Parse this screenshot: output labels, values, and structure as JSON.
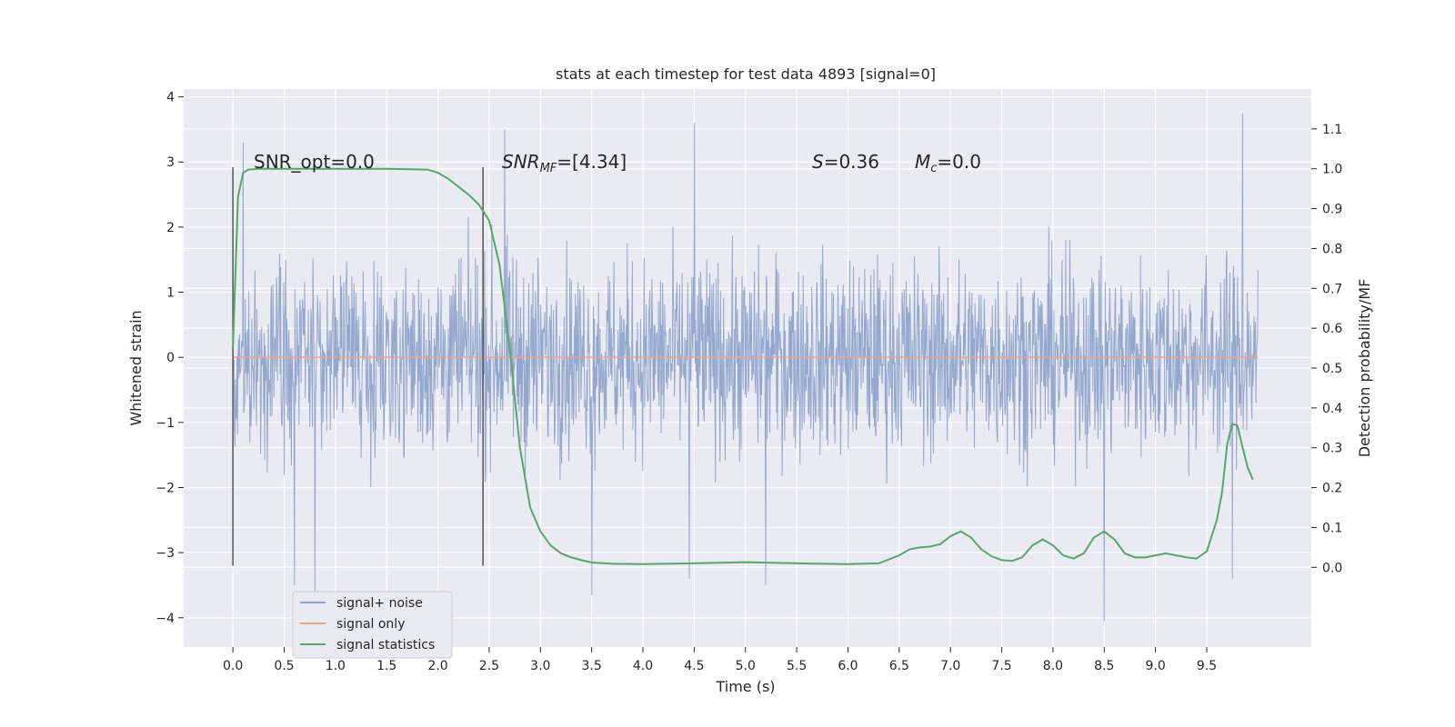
{
  "chart_data": {
    "type": "line",
    "title": "stats at each timestep for test data 4893 [signal=0]",
    "xlabel": "Time (s)",
    "ylabel": "Whitened strain",
    "ylabel_right": "Detection probability/MF",
    "xlim": [
      -0.48,
      10.52
    ],
    "ylim": [
      -4.45,
      4.12
    ],
    "ylim_right": [
      -0.2,
      1.2
    ],
    "x_ticks": [
      "0.0",
      "0.5",
      "1.0",
      "1.5",
      "2.0",
      "2.5",
      "3.0",
      "3.5",
      "4.0",
      "4.5",
      "5.0",
      "5.5",
      "6.0",
      "6.5",
      "7.0",
      "7.5",
      "8.0",
      "8.5",
      "9.0",
      "9.5"
    ],
    "y_ticks": [
      "−4",
      "−3",
      "−2",
      "−1",
      "0",
      "1",
      "2",
      "3",
      "4"
    ],
    "y_right_ticks": [
      "0.0",
      "0.1",
      "0.2",
      "0.3",
      "0.4",
      "0.5",
      "0.6",
      "0.7",
      "0.8",
      "0.9",
      "1.0",
      "1.1"
    ],
    "grid": true,
    "legend_position": "lower-left",
    "annotations": {
      "snr_opt": "SNR_opt=0.0",
      "snr_mf_base": "SNR",
      "snr_mf_sub": "MF",
      "snr_mf_value": "=[4.34]",
      "s_sym": "S",
      "s_value": "=0.36",
      "mc_base": "M",
      "mc_sub": "c",
      "mc_value": "=0.0"
    },
    "markers": [
      {
        "x": 0.0,
        "y_range": [
          -3.2,
          2.92
        ]
      },
      {
        "x": 2.44,
        "y_range": [
          -3.2,
          2.92
        ]
      }
    ],
    "series": [
      {
        "name": "signal+ noise",
        "color": "#8fa4cc",
        "axis": "left",
        "time_range": [
          0.0,
          10.0
        ],
        "sample_count": 2000,
        "typical_range": [
          -2.0,
          2.3
        ],
        "extremes": [
          {
            "x": 0.1,
            "y": 3.3
          },
          {
            "x": 0.6,
            "y": -3.5
          },
          {
            "x": 0.8,
            "y": -3.6
          },
          {
            "x": 2.65,
            "y": 3.5
          },
          {
            "x": 3.5,
            "y": -3.65
          },
          {
            "x": 4.5,
            "y": 3.6
          },
          {
            "x": 4.45,
            "y": -3.4
          },
          {
            "x": 5.2,
            "y": -3.5
          },
          {
            "x": 8.5,
            "y": -4.05
          },
          {
            "x": 9.75,
            "y": 3.5
          },
          {
            "x": 9.85,
            "y": 3.75
          },
          {
            "x": 9.75,
            "y": -3.4
          }
        ]
      },
      {
        "name": "signal only",
        "color": "#e8a58a",
        "axis": "left",
        "x": [
          0.0,
          10.0
        ],
        "y": [
          0.0,
          0.0
        ]
      },
      {
        "name": "signal statistics",
        "color": "#55a868",
        "axis": "right",
        "x": [
          0.0,
          0.05,
          0.1,
          0.15,
          0.25,
          0.5,
          1.0,
          1.5,
          1.9,
          2.0,
          2.1,
          2.2,
          2.3,
          2.4,
          2.5,
          2.6,
          2.7,
          2.8,
          2.9,
          3.0,
          3.1,
          3.2,
          3.3,
          3.4,
          3.5,
          3.7,
          4.0,
          4.5,
          5.0,
          5.5,
          6.0,
          6.3,
          6.5,
          6.6,
          6.7,
          6.8,
          6.9,
          7.0,
          7.1,
          7.2,
          7.3,
          7.4,
          7.5,
          7.6,
          7.7,
          7.8,
          7.9,
          8.0,
          8.1,
          8.2,
          8.3,
          8.4,
          8.5,
          8.6,
          8.7,
          8.8,
          8.9,
          9.0,
          9.1,
          9.2,
          9.3,
          9.4,
          9.5,
          9.6,
          9.65,
          9.7,
          9.75,
          9.8,
          9.85,
          9.9,
          9.95
        ],
        "y": [
          0.55,
          0.93,
          0.99,
          0.998,
          1.0,
          1.0,
          1.0,
          1.0,
          0.998,
          0.99,
          0.975,
          0.955,
          0.935,
          0.91,
          0.87,
          0.76,
          0.55,
          0.3,
          0.15,
          0.09,
          0.055,
          0.035,
          0.025,
          0.018,
          0.012,
          0.009,
          0.008,
          0.01,
          0.013,
          0.01,
          0.008,
          0.01,
          0.03,
          0.045,
          0.05,
          0.052,
          0.058,
          0.078,
          0.09,
          0.075,
          0.045,
          0.028,
          0.018,
          0.016,
          0.025,
          0.055,
          0.07,
          0.055,
          0.03,
          0.022,
          0.035,
          0.075,
          0.09,
          0.07,
          0.035,
          0.025,
          0.025,
          0.03,
          0.035,
          0.03,
          0.025,
          0.022,
          0.04,
          0.12,
          0.19,
          0.31,
          0.36,
          0.355,
          0.3,
          0.25,
          0.22
        ]
      }
    ]
  }
}
